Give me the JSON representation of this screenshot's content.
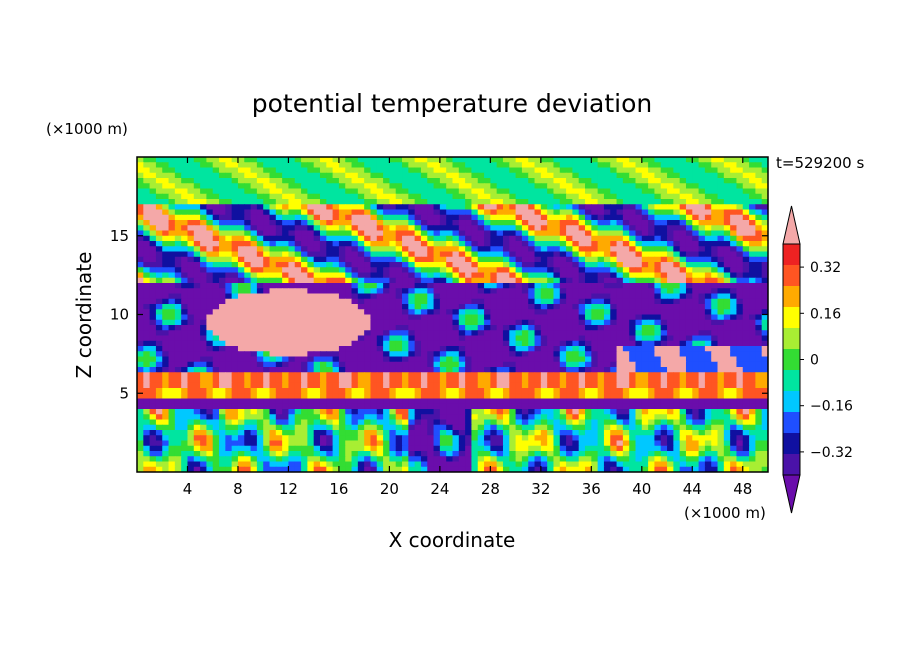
{
  "chart_data": {
    "type": "heatmap",
    "title": "potential temperature deviation",
    "time_label": "t=529200 s",
    "xlabel": "X coordinate",
    "ylabel": "Z coordinate",
    "x_unit": "(×1000 m)",
    "y_unit": "(×1000 m)",
    "xlim": [
      0,
      50
    ],
    "ylim": [
      0,
      20
    ],
    "x_ticks": [
      4,
      8,
      12,
      16,
      20,
      24,
      28,
      32,
      36,
      40,
      44,
      48
    ],
    "y_ticks": [
      5,
      10,
      15
    ],
    "colorbar": {
      "levels": [
        -0.4,
        -0.32,
        -0.24,
        -0.16,
        -0.08,
        0,
        0.08,
        0.16,
        0.24,
        0.32,
        0.4
      ],
      "tick_labels": [
        "0.32",
        "0.16",
        "0",
        "−0.16",
        "−0.32"
      ],
      "tick_values": [
        0.32,
        0.16,
        0,
        -0.16,
        -0.32
      ],
      "colors": [
        "#6a0dab",
        "#4a12a8",
        "#1010a0",
        "#1f4fff",
        "#00c8ff",
        "#00e5a0",
        "#33dd33",
        "#a8ee33",
        "#ffff00",
        "#ffaa00",
        "#ff5522",
        "#ee2222",
        "#f4a8a8"
      ],
      "extend": "both"
    }
  }
}
